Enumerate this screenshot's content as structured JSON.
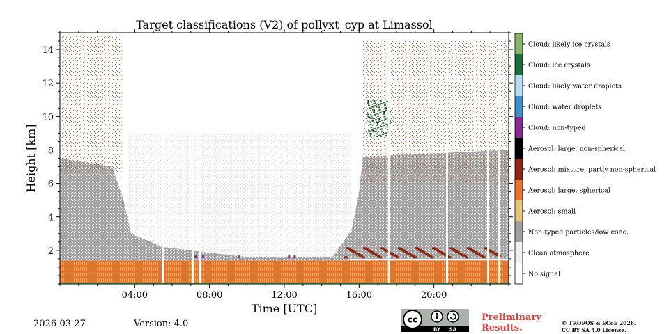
{
  "chart_data": {
    "type": "heatmap",
    "title": "Target classifications (V2) of pollyxt_cyp at Limassol",
    "xlabel": "Time [UTC]",
    "ylabel": "Height [km]",
    "xlim": [
      0,
      24
    ],
    "ylim": [
      0,
      15
    ],
    "x_ticks": [
      {
        "value": 4,
        "label": "04:00"
      },
      {
        "value": 8,
        "label": "08:00"
      },
      {
        "value": 12,
        "label": "12:00"
      },
      {
        "value": 16,
        "label": "16:00"
      },
      {
        "value": 20,
        "label": "20:00"
      }
    ],
    "y_ticks": [
      {
        "value": 2,
        "label": "2"
      },
      {
        "value": 4,
        "label": "4"
      },
      {
        "value": 6,
        "label": "6"
      },
      {
        "value": 8,
        "label": "8"
      },
      {
        "value": 10,
        "label": "10"
      },
      {
        "value": 12,
        "label": "12"
      },
      {
        "value": 14,
        "label": "14"
      }
    ],
    "classes": [
      {
        "label": "No signal",
        "color": "#ffffff"
      },
      {
        "label": "Clean atmosphere",
        "color": "#f0f0f0"
      },
      {
        "label": "Non-typed particles/low conc.",
        "color": "#a0a0a0"
      },
      {
        "label": "Aerosol: small",
        "color": "#e3c47a"
      },
      {
        "label": "Aerosol: large, spherical",
        "color": "#e87234"
      },
      {
        "label": "Aerosol: mixture, partly non-spherical",
        "color": "#8b2812"
      },
      {
        "label": "Aerosol: large, non-spherical",
        "color": "#000000"
      },
      {
        "label": "Cloud: non-typed",
        "color": "#862a8e"
      },
      {
        "label": "Cloud: water droplets",
        "color": "#3d8fcb"
      },
      {
        "label": "Cloud: likely water droplets",
        "color": "#b5dcf3"
      },
      {
        "label": "Cloud: ice crystals",
        "color": "#1a6e38"
      },
      {
        "label": "Cloud: likely ice crystals",
        "color": "#85b46a"
      }
    ],
    "regions": [
      {
        "class": "Aerosol: large, spherical",
        "x": [
          0,
          24
        ],
        "height_km": [
          0,
          1.4
        ]
      },
      {
        "class": "Non-typed particles/low conc.",
        "x": [
          0,
          4
        ],
        "height_km": [
          1.4,
          7.5
        ]
      },
      {
        "class": "Non-typed particles/low conc.",
        "x": [
          15.5,
          24
        ],
        "height_km": [
          1.5,
          8
        ]
      },
      {
        "class": "Aerosol: large, spherical",
        "x": [
          0,
          3.3
        ],
        "height_km": [
          6.5,
          14.8
        ]
      },
      {
        "class": "Aerosol: large, spherical",
        "x": [
          16.2,
          24
        ],
        "height_km": [
          6,
          14.5
        ]
      },
      {
        "class": "Cloud: ice crystals",
        "x": [
          16.4,
          17.6
        ],
        "height_km": [
          8.8,
          11
        ]
      },
      {
        "class": "Aerosol: mixture, partly non-spherical",
        "x": [
          15.2,
          23.5
        ],
        "height_km": [
          1.4,
          2.4
        ]
      },
      {
        "class": "Cloud: non-typed",
        "x": [
          7,
          12.7
        ],
        "height_km": [
          1.3,
          1.8
        ]
      }
    ],
    "gaps_utc": [
      5.5,
      7.1,
      7.5,
      17.6,
      20.7,
      22.9,
      23.5
    ]
  },
  "footer": {
    "date": "2026-03-27",
    "version": "Version: 4.0",
    "preliminary_line1": "Preliminary",
    "preliminary_line2": "Results.",
    "copyright_line1": "© TROPOS & ECoE 2026.",
    "copyright_line2": "CC BY SA 4.0 License."
  },
  "license_badge": {
    "cc": "cc",
    "by": "BY",
    "sa": "SA"
  }
}
